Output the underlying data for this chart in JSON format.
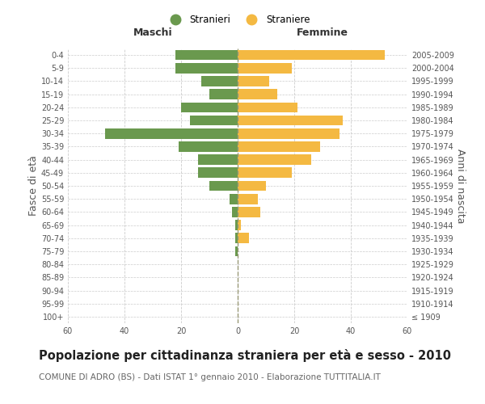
{
  "age_groups": [
    "100+",
    "95-99",
    "90-94",
    "85-89",
    "80-84",
    "75-79",
    "70-74",
    "65-69",
    "60-64",
    "55-59",
    "50-54",
    "45-49",
    "40-44",
    "35-39",
    "30-34",
    "25-29",
    "20-24",
    "15-19",
    "10-14",
    "5-9",
    "0-4"
  ],
  "birth_years": [
    "≤ 1909",
    "1910-1914",
    "1915-1919",
    "1920-1924",
    "1925-1929",
    "1930-1934",
    "1935-1939",
    "1940-1944",
    "1945-1949",
    "1950-1954",
    "1955-1959",
    "1960-1964",
    "1965-1969",
    "1970-1974",
    "1975-1979",
    "1980-1984",
    "1985-1989",
    "1990-1994",
    "1995-1999",
    "2000-2004",
    "2005-2009"
  ],
  "males": [
    0,
    0,
    0,
    0,
    0,
    1,
    1,
    1,
    2,
    3,
    10,
    14,
    14,
    21,
    47,
    17,
    20,
    10,
    13,
    22,
    22
  ],
  "females": [
    0,
    0,
    0,
    0,
    0,
    0,
    4,
    1,
    8,
    7,
    10,
    19,
    26,
    29,
    36,
    37,
    21,
    14,
    11,
    19,
    52
  ],
  "male_color": "#6a994e",
  "female_color": "#f4b942",
  "center_line_color": "#999977",
  "background_color": "#ffffff",
  "grid_color": "#cccccc",
  "title": "Popolazione per cittadinanza straniera per età e sesso - 2010",
  "subtitle": "COMUNE DI ADRO (BS) - Dati ISTAT 1° gennaio 2010 - Elaborazione TUTTITALIA.IT",
  "xlabel_left": "Maschi",
  "xlabel_right": "Femmine",
  "ylabel_left": "Fasce di età",
  "ylabel_right": "Anni di nascita",
  "legend_male": "Stranieri",
  "legend_female": "Straniere",
  "xlim": 60,
  "title_fontsize": 10.5,
  "subtitle_fontsize": 7.5,
  "tick_fontsize": 7,
  "label_fontsize": 9,
  "header_fontsize": 9
}
